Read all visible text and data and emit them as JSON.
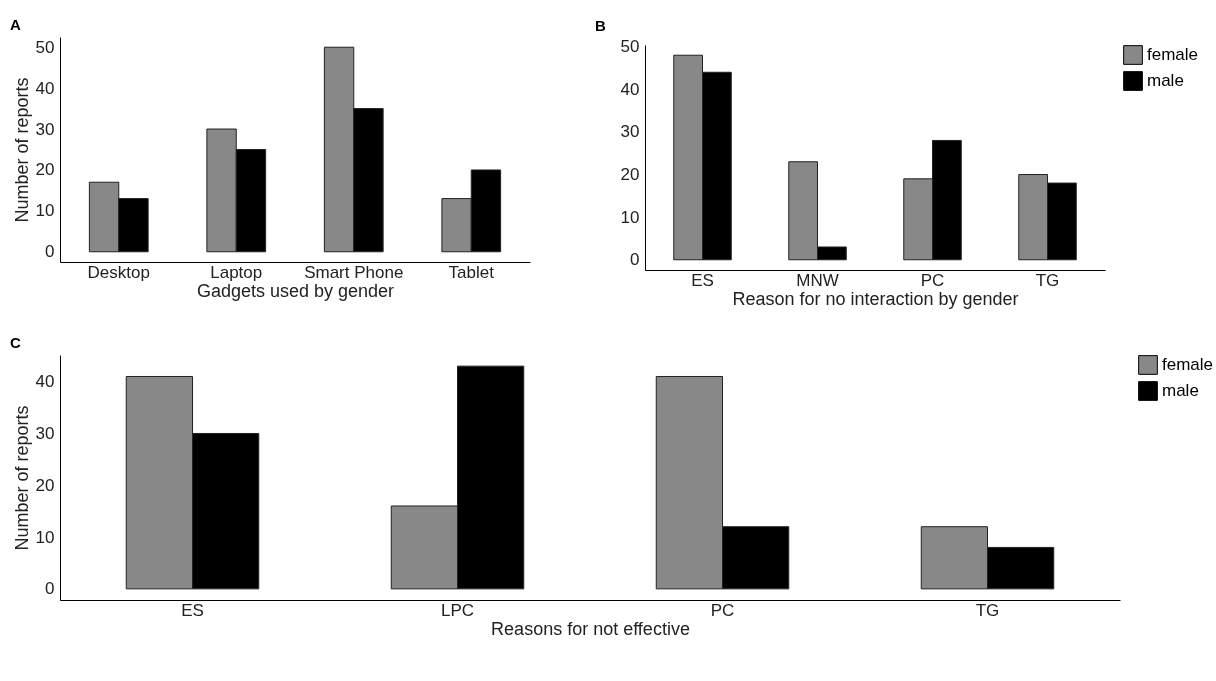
{
  "chart_data": [
    {
      "type": "bar",
      "title": "A",
      "xlabel": "Gadgets used by gender",
      "ylabel": "Number of reports",
      "categories": [
        "Desktop",
        "Laptop",
        "Smart Phone",
        "Tablet"
      ],
      "ylim": [
        -2.5,
        52.5
      ],
      "yticks": [
        0,
        10,
        20,
        30,
        40,
        50
      ],
      "grid": false,
      "legend": false,
      "series": [
        {
          "color": "#888888",
          "values": [
            17,
            30,
            50,
            13
          ]
        },
        {
          "color": "#000000",
          "values": [
            13,
            25,
            35,
            20
          ]
        }
      ]
    },
    {
      "type": "bar",
      "title": "B",
      "xlabel": "Reason for no interaction by gender",
      "categories": [
        "ES",
        "MNW",
        "PC",
        "TG"
      ],
      "ylim": [
        -2.4,
        50.4
      ],
      "yticks": [
        0,
        10,
        20,
        30,
        40,
        50
      ],
      "grid": false,
      "legend": "right",
      "series": [
        {
          "name": "female",
          "color": "#888888",
          "values": [
            48,
            23,
            19,
            20
          ]
        },
        {
          "name": "male",
          "color": "#000000",
          "values": [
            44,
            3,
            28,
            18
          ]
        }
      ]
    },
    {
      "type": "bar",
      "title": "C",
      "xlabel": "Reasons for not effective",
      "ylabel": "Number of reports",
      "categories": [
        "ES",
        "LPC",
        "PC",
        "TG"
      ],
      "ylim": [
        -2.15,
        45.15
      ],
      "yticks": [
        0,
        10,
        20,
        30,
        40
      ],
      "grid": false,
      "legend": "right",
      "series": [
        {
          "name": "female",
          "color": "#888888",
          "values": [
            41,
            16,
            41,
            12
          ]
        },
        {
          "name": "male",
          "color": "#000000",
          "values": [
            30,
            43,
            12,
            8
          ]
        }
      ]
    }
  ]
}
